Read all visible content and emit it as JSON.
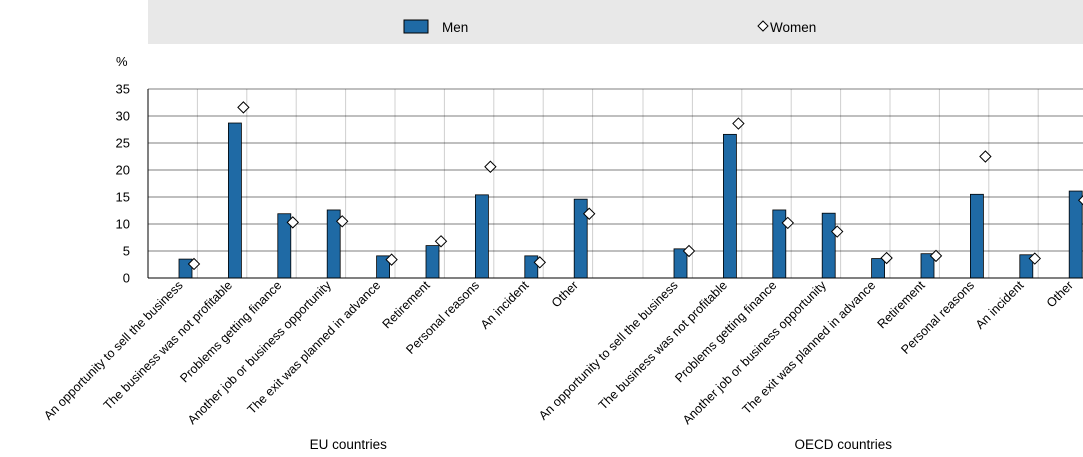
{
  "chart_data": {
    "type": "bar",
    "y_unit_label": "%",
    "ylim": [
      0,
      35
    ],
    "yticks": [
      0,
      5,
      10,
      15,
      20,
      25,
      30,
      35
    ],
    "legend_position": "top",
    "series": [
      {
        "name": "Men",
        "marker": "bar",
        "color": "#1f6aa5"
      },
      {
        "name": "Women",
        "marker": "diamond",
        "color": "#ffffff"
      }
    ],
    "groups": [
      {
        "label": "EU countries",
        "categories": [
          "An opportunity to sell the business",
          "The business was not profitable",
          "Problems getting finance",
          "Another job or business opportunity",
          "The exit was planned in advance",
          "Retirement",
          "Personal reasons",
          "An incident",
          "Other"
        ],
        "men": [
          3.5,
          28.7,
          11.9,
          12.6,
          4.1,
          6.0,
          15.4,
          4.1,
          14.6
        ],
        "women": [
          2.6,
          31.6,
          10.3,
          10.5,
          3.4,
          6.8,
          20.6,
          2.9,
          11.9
        ]
      },
      {
        "label": "OECD countries",
        "categories": [
          "An opportunity to sell the business",
          "The business was not profitable",
          "Problems getting finance",
          "Another job or business opportunity",
          "The exit was planned in advance",
          "Retirement",
          "Personal reasons",
          "An incident",
          "Other"
        ],
        "men": [
          5.4,
          26.6,
          12.6,
          12.0,
          3.6,
          4.5,
          15.5,
          4.3,
          16.1
        ],
        "women": [
          5.0,
          28.6,
          10.2,
          8.6,
          3.7,
          4.1,
          22.5,
          3.6,
          14.4
        ]
      }
    ]
  }
}
